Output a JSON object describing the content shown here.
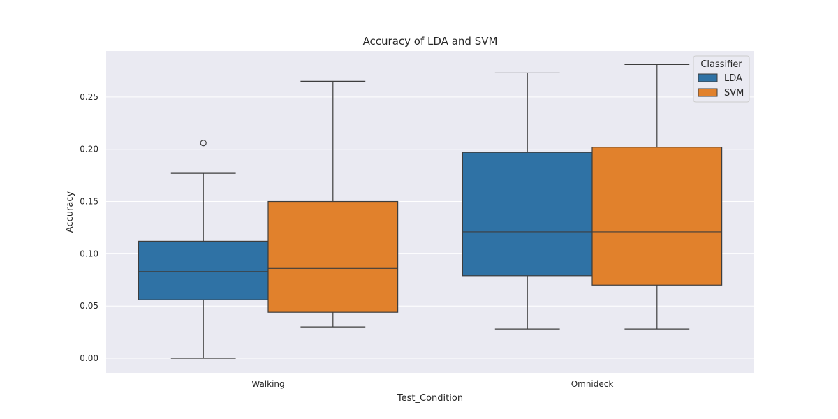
{
  "chart_data": {
    "type": "box",
    "title": "Accuracy of LDA and SVM",
    "xlabel": "Test_Condition",
    "ylabel": "Accuracy",
    "categories": [
      "Walking",
      "Omnideck"
    ],
    "ylim": [
      -0.014,
      0.294
    ],
    "yticks": [
      0.0,
      0.05,
      0.1,
      0.15,
      0.2,
      0.25
    ],
    "ytick_labels": [
      "0.00",
      "0.05",
      "0.10",
      "0.15",
      "0.20",
      "0.25"
    ],
    "grid": true,
    "legend": {
      "title": "Classifier",
      "placement": "top-right"
    },
    "series": [
      {
        "name": "LDA",
        "color": "#2f72a5",
        "boxes": [
          {
            "category": "Walking",
            "whisker_low": 0.0,
            "q1": 0.056,
            "median": 0.083,
            "q3": 0.112,
            "whisker_high": 0.177,
            "outliers": [
              0.206
            ]
          },
          {
            "category": "Omnideck",
            "whisker_low": 0.028,
            "q1": 0.079,
            "median": 0.121,
            "q3": 0.197,
            "whisker_high": 0.273,
            "outliers": []
          }
        ]
      },
      {
        "name": "SVM",
        "color": "#e1812c",
        "boxes": [
          {
            "category": "Walking",
            "whisker_low": 0.03,
            "q1": 0.044,
            "median": 0.086,
            "q3": 0.15,
            "whisker_high": 0.265,
            "outliers": []
          },
          {
            "category": "Omnideck",
            "whisker_low": 0.028,
            "q1": 0.07,
            "median": 0.121,
            "q3": 0.202,
            "whisker_high": 0.281,
            "outliers": []
          }
        ]
      }
    ]
  }
}
